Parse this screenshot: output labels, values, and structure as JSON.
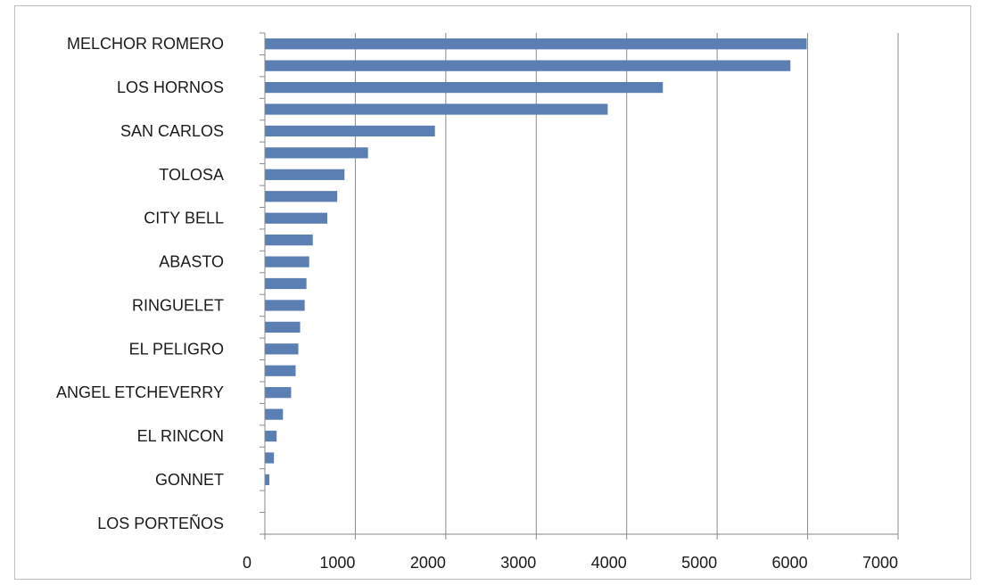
{
  "chart_data": {
    "type": "bar",
    "orientation": "horizontal",
    "title": "",
    "xlabel": "",
    "ylabel": "",
    "xlim": [
      0,
      7000
    ],
    "x_ticks": [
      0,
      1000,
      2000,
      3000,
      4000,
      5000,
      6000,
      7000
    ],
    "grid": "vertical",
    "legend": "none",
    "bar_color": "#5b7fb3",
    "categories": [
      "MELCHOR ROMERO",
      "",
      "LOS HORNOS",
      "",
      "SAN CARLOS",
      "",
      "TOLOSA",
      "",
      "CITY BELL",
      "",
      "ABASTO",
      "",
      "RINGUELET",
      "",
      "EL PELIGRO",
      "",
      "ANGEL ETCHEVERRY",
      "",
      "EL RINCON",
      "",
      "GONNET",
      "",
      "LOS PORTEÑOS"
    ],
    "values": [
      5990,
      5810,
      4400,
      3790,
      1880,
      1140,
      880,
      800,
      690,
      530,
      490,
      460,
      440,
      390,
      370,
      340,
      290,
      200,
      130,
      100,
      50,
      0,
      0
    ]
  }
}
